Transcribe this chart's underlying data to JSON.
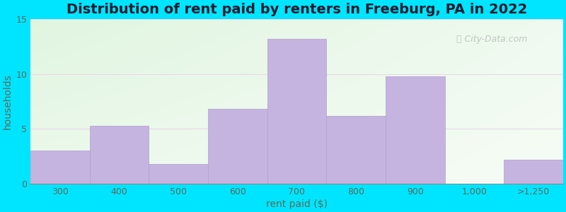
{
  "title": "Distribution of rent paid by renters in Freeburg, PA in 2022",
  "xlabel": "rent paid ($)",
  "ylabel": "households",
  "categories": [
    "300",
    "400",
    "500",
    "600",
    "700",
    "800",
    "900",
    "1,000",
    ">1,250"
  ],
  "values": [
    3,
    5.3,
    1.8,
    6.8,
    13.2,
    6.2,
    9.8,
    0,
    2.2
  ],
  "bar_color": "#c5b3e0",
  "bar_edge_color": "#b0a0d0",
  "ylim": [
    0,
    15
  ],
  "yticks": [
    0,
    5,
    10,
    15
  ],
  "bg_left_color": "#d4edda",
  "bg_right_color": "#f0f8f0",
  "bg_top_color": "#e0f0e8",
  "outer_bg": "#00e5ff",
  "title_fontsize": 14,
  "axis_label_fontsize": 10,
  "tick_label_fontsize": 9,
  "watermark_text": "City-Data.com",
  "grid_color": "#e8d8e8",
  "title_color": "#1a1a2e",
  "label_color": "#5a6a5a"
}
